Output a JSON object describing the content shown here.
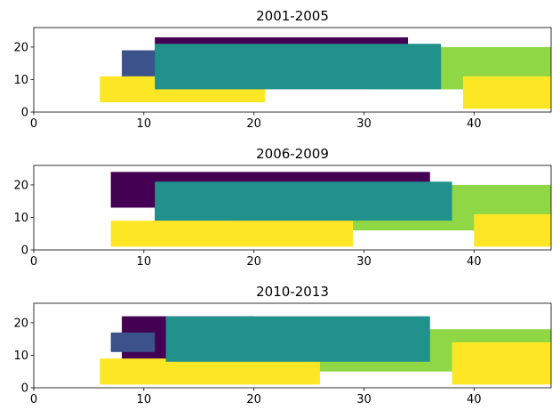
{
  "chart_data": [
    {
      "type": "heatmap",
      "title": "2001-2005",
      "xlabel": "",
      "ylabel": "",
      "xlim": [
        0,
        47
      ],
      "ylim": [
        0,
        26
      ],
      "xticks": [
        0,
        10,
        20,
        30,
        40
      ],
      "yticks": [
        0,
        10,
        20
      ],
      "grid": false,
      "colormap": "viridis",
      "category_colors": {
        "dark_purple": "#440154",
        "indigo": "#3b528b",
        "teal": "#21918c",
        "light_green": "#8fd744",
        "yellow": "#fde725"
      },
      "regions": [
        {
          "color": "#440154",
          "x": [
            11,
            34
          ],
          "y": [
            17,
            23
          ]
        },
        {
          "color": "#3b528b",
          "x": [
            8,
            21
          ],
          "y": [
            7,
            19
          ]
        },
        {
          "color": "#8fd744",
          "x": [
            31,
            47
          ],
          "y": [
            7,
            20
          ]
        },
        {
          "color": "#fde725",
          "x": [
            6,
            21
          ],
          "y": [
            3,
            11
          ]
        },
        {
          "color": "#fde725",
          "x": [
            39,
            47
          ],
          "y": [
            1,
            11
          ]
        },
        {
          "color": "#21918c",
          "x": [
            11,
            37
          ],
          "y": [
            7,
            21
          ]
        }
      ]
    },
    {
      "type": "heatmap",
      "title": "2006-2009",
      "xlabel": "",
      "ylabel": "",
      "xlim": [
        0,
        47
      ],
      "ylim": [
        0,
        26
      ],
      "xticks": [
        0,
        10,
        20,
        30,
        40
      ],
      "yticks": [
        0,
        10,
        20
      ],
      "grid": false,
      "colormap": "viridis",
      "category_colors": {
        "dark_purple": "#440154",
        "indigo": "#3b528b",
        "teal": "#21918c",
        "light_green": "#8fd744",
        "yellow": "#fde725"
      },
      "regions": [
        {
          "color": "#440154",
          "x": [
            7,
            36
          ],
          "y": [
            13,
            24
          ]
        },
        {
          "color": "#440154",
          "x": [
            11,
            27
          ],
          "y": [
            9,
            14
          ]
        },
        {
          "color": "#8fd744",
          "x": [
            18,
            47
          ],
          "y": [
            6,
            20
          ]
        },
        {
          "color": "#fde725",
          "x": [
            7,
            29
          ],
          "y": [
            1,
            9
          ]
        },
        {
          "color": "#fde725",
          "x": [
            40,
            47
          ],
          "y": [
            1,
            11
          ]
        },
        {
          "color": "#21918c",
          "x": [
            11,
            38
          ],
          "y": [
            9,
            21
          ]
        }
      ]
    },
    {
      "type": "heatmap",
      "title": "2010-2013",
      "xlabel": "",
      "ylabel": "",
      "xlim": [
        0,
        47
      ],
      "ylim": [
        0,
        26
      ],
      "xticks": [
        0,
        10,
        20,
        30,
        40
      ],
      "yticks": [
        0,
        10,
        20
      ],
      "grid": false,
      "colormap": "viridis",
      "category_colors": {
        "dark_purple": "#440154",
        "indigo": "#3b528b",
        "teal": "#21918c",
        "light_green": "#8fd744",
        "yellow": "#fde725"
      },
      "regions": [
        {
          "color": "#440154",
          "x": [
            8,
            20
          ],
          "y": [
            7,
            22
          ]
        },
        {
          "color": "#3b528b",
          "x": [
            7,
            11
          ],
          "y": [
            11,
            17
          ]
        },
        {
          "color": "#8fd744",
          "x": [
            24,
            47
          ],
          "y": [
            5,
            18
          ]
        },
        {
          "color": "#fde725",
          "x": [
            6,
            26
          ],
          "y": [
            1,
            9
          ]
        },
        {
          "color": "#fde725",
          "x": [
            38,
            47
          ],
          "y": [
            1,
            14
          ]
        },
        {
          "color": "#21918c",
          "x": [
            12,
            36
          ],
          "y": [
            8,
            22
          ]
        }
      ]
    }
  ]
}
